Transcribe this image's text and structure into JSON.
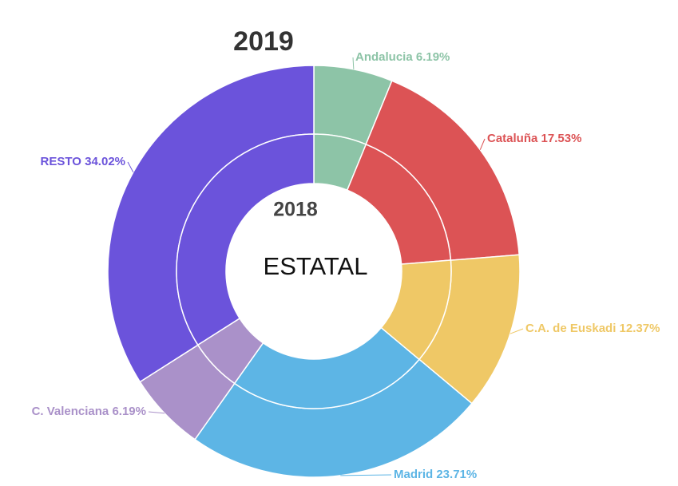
{
  "chart_data": {
    "type": "donut",
    "categories": [
      "Andalucia",
      "Cataluña",
      "C.A. de Euskadi",
      "Madrid",
      "C. Valenciana",
      "RESTO"
    ],
    "colors": [
      "#8dc4a7",
      "#dc5355",
      "#efc866",
      "#5db5e5",
      "#aa91c9",
      "#6b53db"
    ],
    "series": [
      {
        "name": "2019",
        "values": [
          6.19,
          17.53,
          12.37,
          23.71,
          6.19,
          34.02
        ],
        "value_labels": [
          "6.19%",
          "17.53%",
          "12.37%",
          "23.71%",
          "6.19%",
          "34.02%"
        ]
      },
      {
        "name": "2018",
        "values": [
          6.2,
          17.5,
          12.4,
          23.7,
          6.2,
          34.0
        ]
      }
    ],
    "center_text": "ESTATAL"
  }
}
